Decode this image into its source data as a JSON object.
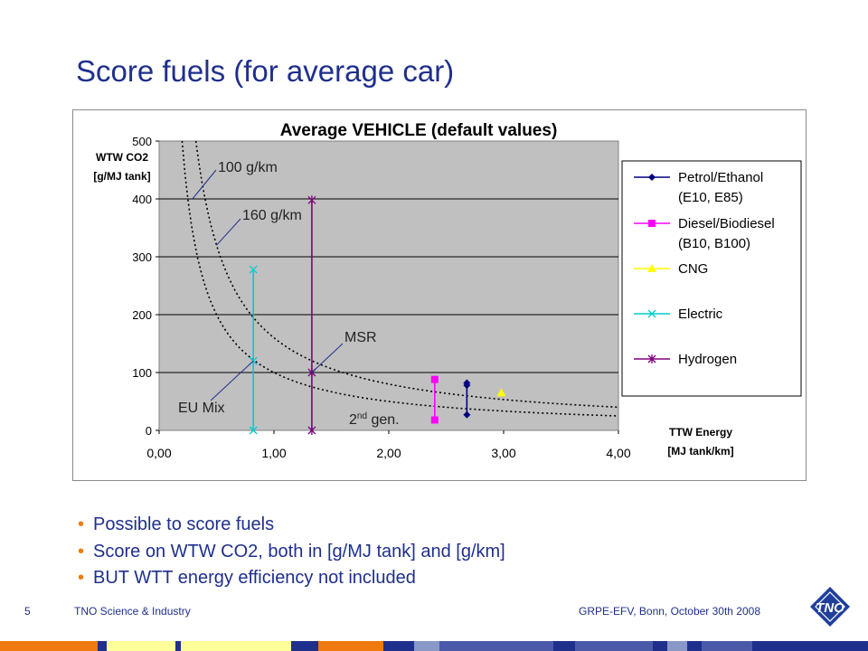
{
  "slide": {
    "title": "Score fuels (for average car)",
    "bullets": [
      "Possible to score fuels",
      "Score on WTW CO2, both in [g/MJ tank] and [g/km]",
      "BUT WTT energy efficiency not included"
    ],
    "footer": {
      "page_number": "5",
      "left": "TNO Science & Industry",
      "right": "GRPE-EFV, Bonn, October 30th 2008"
    },
    "logo_text": "TNO"
  },
  "colors": {
    "title": "#1f2f8c",
    "bullet_marker": "#f07a10",
    "plot_background": "#c0c0c0",
    "petrol": "#000080",
    "diesel": "#ff00ff",
    "cng": "#ffff00",
    "electric": "#00cccc",
    "hydrogen": "#800080"
  },
  "chart_data": {
    "type": "scatter",
    "title": "Average VEHICLE (default values)",
    "ylabel": "WTW CO2\n[g/MJ tank]",
    "xlabel": "TTW Energy\n[MJ tank/km]",
    "xlim": [
      0,
      4
    ],
    "ylim": [
      0,
      500
    ],
    "x_ticks": [
      "0,00",
      "1,00",
      "2,00",
      "3,00",
      "4,00"
    ],
    "y_ticks": [
      "0",
      "100",
      "200",
      "300",
      "400",
      "500"
    ],
    "grid": true,
    "legend_position": "right",
    "iso_curves": [
      {
        "label": "100 g/km",
        "g_per_km": 100
      },
      {
        "label": "160 g/km",
        "g_per_km": 160
      }
    ],
    "series": [
      {
        "name": "Petrol/Ethanol (E10, E85)",
        "marker": "diamond",
        "color": "#000080",
        "points": [
          {
            "x": 2.68,
            "y": 82
          },
          {
            "x": 2.68,
            "y": 78
          },
          {
            "x": 2.68,
            "y": 27
          }
        ]
      },
      {
        "name": "Diesel/Biodiesel (B10, B100)",
        "marker": "square",
        "color": "#ff00ff",
        "points": [
          {
            "x": 2.4,
            "y": 88
          },
          {
            "x": 2.4,
            "y": 18
          }
        ]
      },
      {
        "name": "CNG",
        "marker": "triangle",
        "color": "#ffff00",
        "points": [
          {
            "x": 2.98,
            "y": 65
          }
        ]
      },
      {
        "name": "Electric",
        "marker": "x",
        "color": "#00cccc",
        "points": [
          {
            "x": 0.82,
            "y": 278
          },
          {
            "x": 0.82,
            "y": 120
          },
          {
            "x": 0.82,
            "y": 0
          }
        ]
      },
      {
        "name": "Hydrogen",
        "marker": "star",
        "color": "#800080",
        "points": [
          {
            "x": 1.33,
            "y": 398
          },
          {
            "x": 1.33,
            "y": 100
          },
          {
            "x": 1.33,
            "y": 0
          }
        ]
      }
    ],
    "annotations": [
      {
        "text": "100 g/km",
        "target": {
          "x": 0.29,
          "y": 400
        }
      },
      {
        "text": "160 g/km",
        "target": {
          "x": 0.5,
          "y": 320
        }
      },
      {
        "text": "MSR",
        "target": {
          "x": 1.33,
          "y": 100
        }
      },
      {
        "text": "EU Mix",
        "target": {
          "x": 0.82,
          "y": 120
        }
      },
      {
        "text": "2nd gen.",
        "sup": "nd",
        "base": "2",
        "rest": " gen."
      }
    ]
  }
}
